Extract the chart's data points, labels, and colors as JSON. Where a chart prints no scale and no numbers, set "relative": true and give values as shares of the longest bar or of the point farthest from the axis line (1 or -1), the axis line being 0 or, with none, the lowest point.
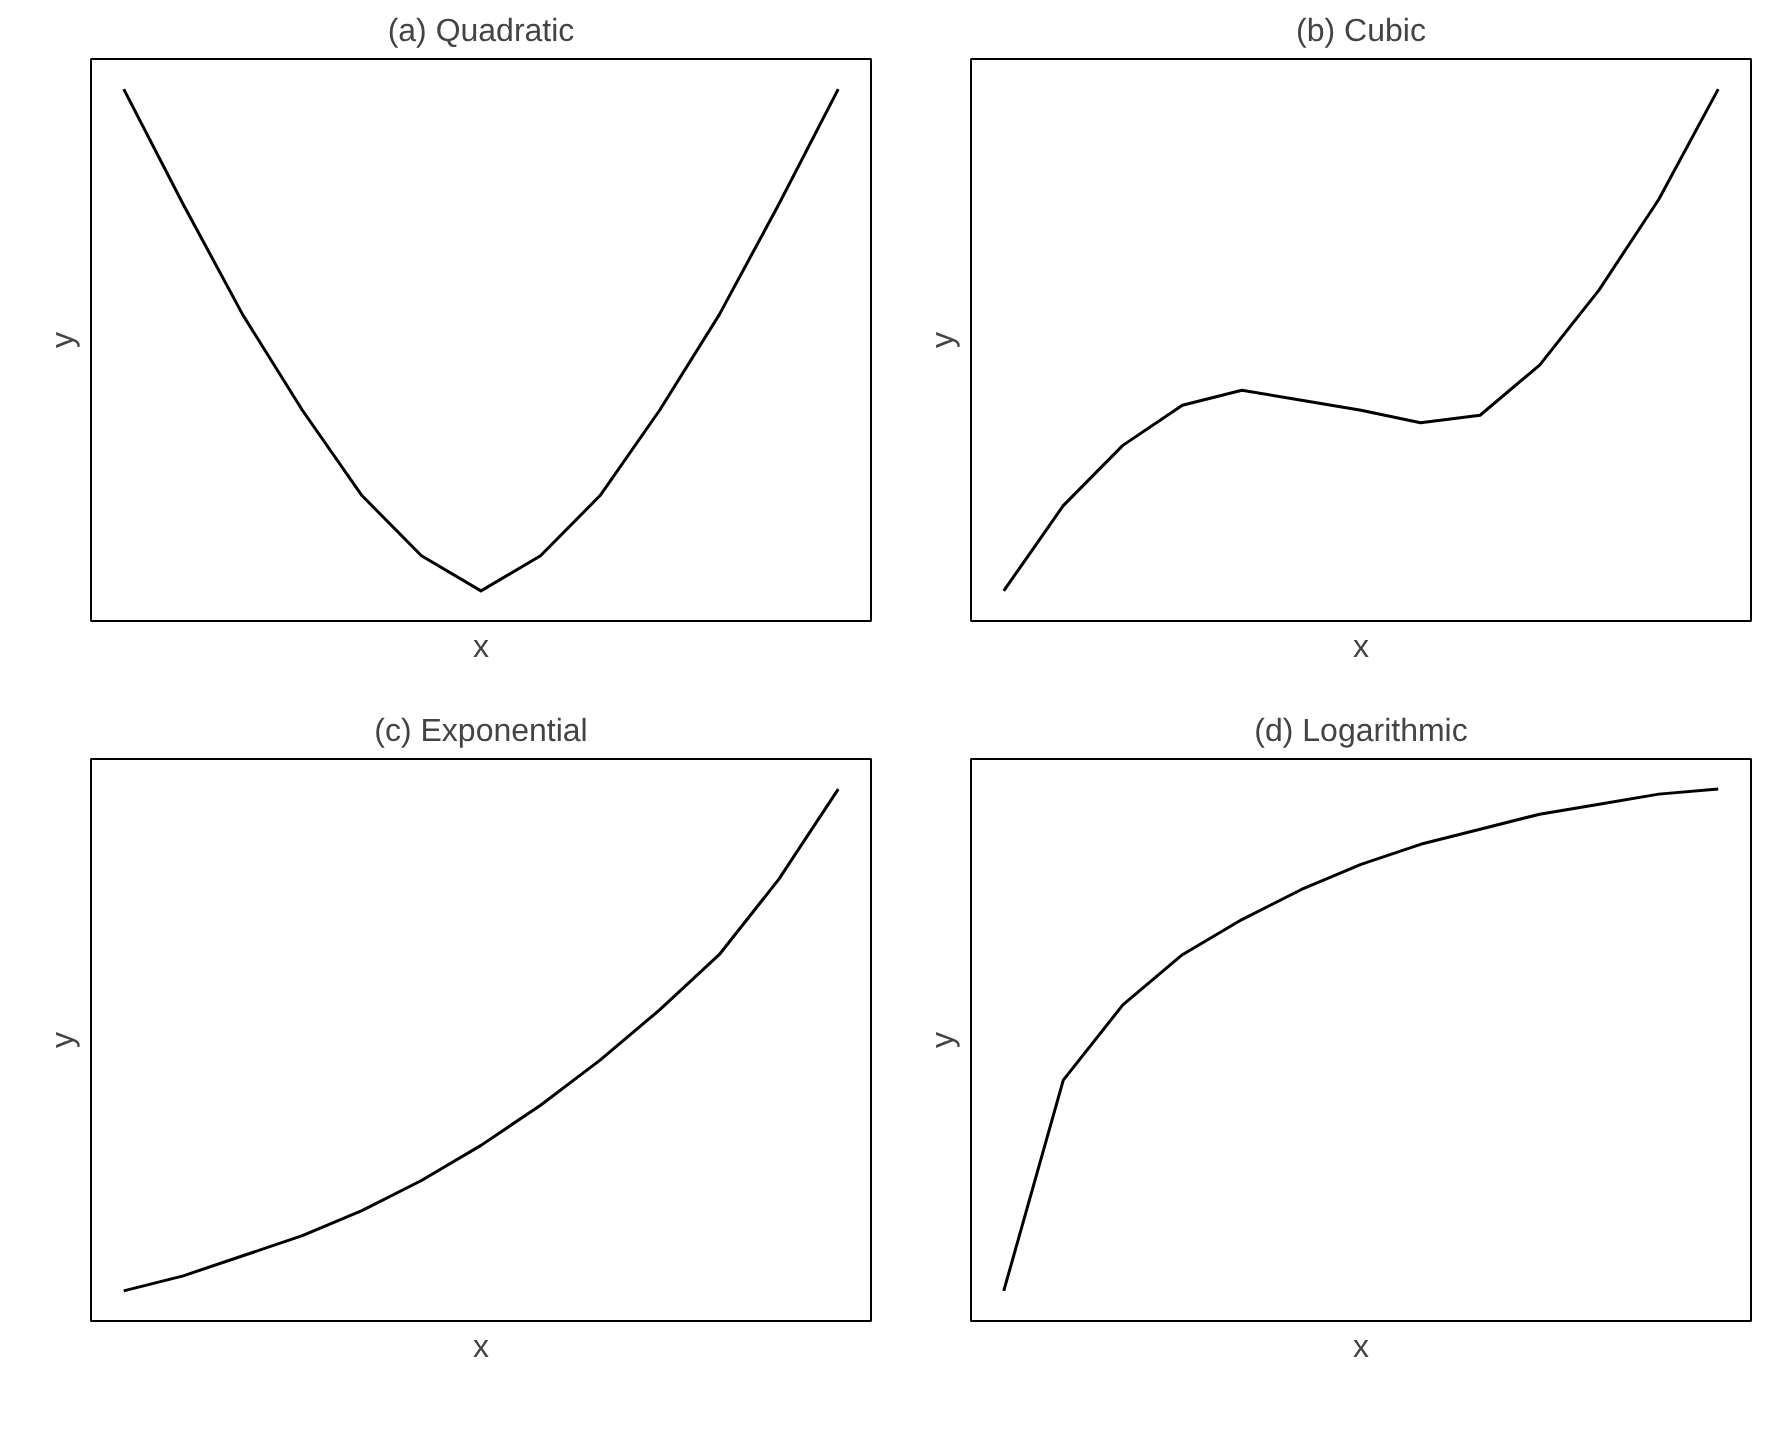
{
  "chart_data": [
    {
      "type": "line",
      "title": "(a) Quadratic",
      "xlabel": "x",
      "ylabel": "y",
      "relative": true,
      "tick_labels": false,
      "line_style": "solid",
      "categories": [
        null,
        null,
        null,
        null,
        null,
        null,
        null,
        null,
        null,
        null,
        null,
        null,
        null
      ],
      "series": [
        {
          "color": "#000000",
          "values": [
            1.0,
            0.77,
            0.55,
            0.36,
            0.19,
            0.07,
            0,
            0.07,
            0.19,
            0.36,
            0.55,
            0.77,
            1.0
          ]
        }
      ]
    },
    {
      "type": "line",
      "title": "(b) Cubic",
      "xlabel": "x",
      "ylabel": "y",
      "relative": true,
      "tick_labels": false,
      "line_style": "solid",
      "categories": [
        null,
        null,
        null,
        null,
        null,
        null,
        null,
        null,
        null,
        null,
        null,
        null,
        null
      ],
      "series": [
        {
          "color": "#000000",
          "values": [
            0,
            0.17,
            0.29,
            0.37,
            0.4,
            0.38,
            0.36,
            0.335,
            0.35,
            0.45,
            0.6,
            0.78,
            1.0
          ]
        }
      ]
    },
    {
      "type": "line",
      "title": "(c) Exponential",
      "xlabel": "x",
      "ylabel": "y",
      "relative": true,
      "tick_labels": false,
      "line_style": "solid",
      "categories": [
        null,
        null,
        null,
        null,
        null,
        null,
        null,
        null,
        null,
        null,
        null,
        null,
        null
      ],
      "series": [
        {
          "color": "#000000",
          "values": [
            0,
            0.03,
            0.07,
            0.11,
            0.16,
            0.22,
            0.29,
            0.37,
            0.46,
            0.56,
            0.67,
            0.82,
            1.0
          ]
        }
      ]
    },
    {
      "type": "line",
      "title": "(d) Logarithmic",
      "xlabel": "x",
      "ylabel": "y",
      "relative": true,
      "tick_labels": false,
      "line_style": "solid",
      "categories": [
        null,
        null,
        null,
        null,
        null,
        null,
        null,
        null,
        null,
        null,
        null,
        null,
        null
      ],
      "series": [
        {
          "color": "#000000",
          "values": [
            0,
            0.42,
            0.57,
            0.67,
            0.74,
            0.8,
            0.85,
            0.89,
            0.92,
            0.95,
            0.97,
            0.99,
            1.0
          ]
        }
      ]
    }
  ]
}
